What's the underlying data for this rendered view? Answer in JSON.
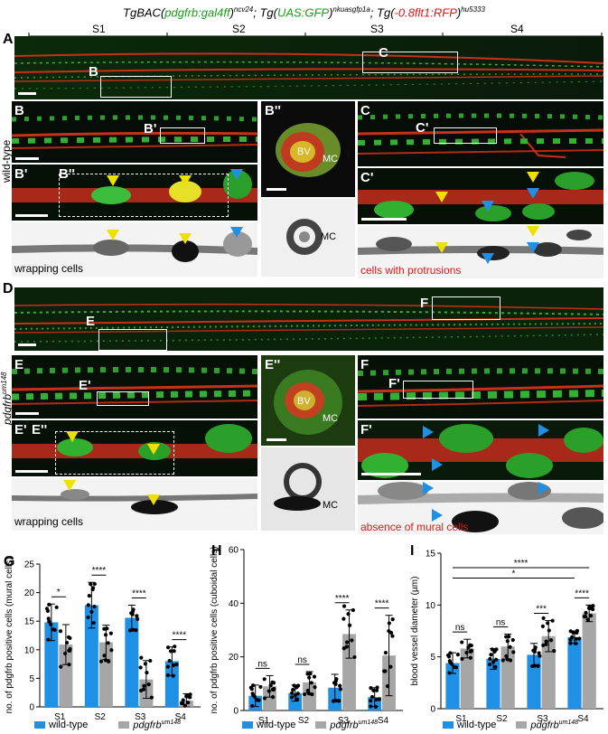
{
  "figure_title": {
    "part1": "TgBAC(",
    "part1_green": "pdgfrb:gal4ff",
    "part1_close": ")",
    "part1_sup": "ncv24",
    "part2": "; Tg(",
    "part2_green": "UAS:GFP",
    "part2_close": ")",
    "part2_sup": "nkuasgfp1a",
    "part3": "; Tg(",
    "part3_red": "-0.8flt1:RFP",
    "part3_close": ")",
    "part3_sup": "hu5333"
  },
  "segments": [
    "S1",
    "S2",
    "S3",
    "S4"
  ],
  "row_labels": {
    "wildtype": "wild-type",
    "mutant": "pdgfrb",
    "mutant_sup": "um148"
  },
  "panels": {
    "A": "A",
    "B": "B",
    "B1": "B'",
    "B2": "B''",
    "B1i": "B'",
    "B2i": "B''",
    "C": "C",
    "C1": "C'",
    "C1i": "C'",
    "D": "D",
    "E": "E",
    "E1": "E'",
    "E2": "E''",
    "E1i": "E'",
    "E2i": "E''",
    "F": "F",
    "F1": "F'",
    "F1i": "F'",
    "G": "G",
    "H": "H",
    "I": "I"
  },
  "insets": {
    "bv": "BV",
    "mc": "MC"
  },
  "captions": {
    "wrapping_b": "wrapping cells",
    "protrusions": "cells with protrusions",
    "wrapping_e": "wrapping cells",
    "absence": "absence of mural cells"
  },
  "colors": {
    "wildtype": "#1e90e6",
    "mutant": "#a6a6a6",
    "caption_red": "#e01818",
    "arrow_yellow": "#f0e000",
    "arrow_blue": "#1e90e6"
  },
  "legend": {
    "wildtype": "wild-type",
    "mutant": "pdgfrb",
    "mutant_sup": "um148"
  },
  "chart_data": [
    {
      "panel": "G",
      "type": "bar",
      "ylabel": "no. of pdgfrb positive cells (mural cells)",
      "ylim": [
        0,
        25
      ],
      "yticks": [
        0,
        5,
        10,
        15,
        20,
        25
      ],
      "categories": [
        "S1",
        "S2",
        "S3",
        "S4"
      ],
      "series": [
        {
          "name": "wild-type",
          "values": [
            14.8,
            17.8,
            15.6,
            8.0
          ],
          "errors": [
            3.2,
            4.0,
            2.2,
            2.5
          ]
        },
        {
          "name": "pdgfrb um148",
          "values": [
            10.9,
            11.3,
            4.8,
            1.1
          ],
          "errors": [
            3.5,
            3.0,
            3.3,
            1.2
          ]
        }
      ],
      "significance": [
        "*",
        "****",
        "****",
        "****"
      ]
    },
    {
      "panel": "H",
      "type": "bar",
      "ylabel": "no. of pdgfrb positive cells (cuboidal cells)",
      "ylim": [
        0,
        60
      ],
      "yticks": [
        0,
        20,
        40,
        60
      ],
      "categories": [
        "S1",
        "S2",
        "S3",
        "S4"
      ],
      "series": [
        {
          "name": "wild-type",
          "values": [
            5.5,
            6.5,
            8.5,
            5.0
          ],
          "errors": [
            4.0,
            3.0,
            5.0,
            3.5
          ]
        },
        {
          "name": "pdgfrb um148",
          "values": [
            9.0,
            10.5,
            28.5,
            20.5
          ],
          "errors": [
            4.0,
            4.0,
            9.0,
            15.0
          ]
        }
      ],
      "significance": [
        "ns",
        "ns",
        "****",
        "****"
      ]
    },
    {
      "panel": "I",
      "type": "bar",
      "ylabel": "blood vessel diameter (µm)",
      "ylim": [
        0,
        15
      ],
      "yticks": [
        0,
        5,
        10,
        15
      ],
      "categories": [
        "S1",
        "S2",
        "S3",
        "S4"
      ],
      "series": [
        {
          "name": "wild-type",
          "values": [
            4.4,
            4.8,
            5.2,
            6.9
          ],
          "errors": [
            1.0,
            1.0,
            1.1,
            0.6
          ]
        },
        {
          "name": "pdgfrb um148",
          "values": [
            5.8,
            6.0,
            7.0,
            9.2
          ],
          "errors": [
            0.9,
            1.2,
            1.5,
            0.8
          ]
        }
      ],
      "significance": [
        "ns",
        "ns",
        "***",
        "****"
      ],
      "extra_significance": [
        "*",
        "****"
      ]
    }
  ]
}
